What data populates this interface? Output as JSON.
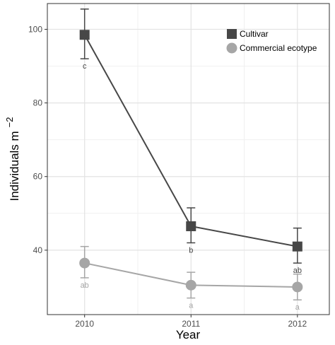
{
  "chart_data": {
    "type": "line",
    "xlabel": "Year",
    "ylabel": "Individuals m",
    "ylabel_superscript": "−2",
    "x": [
      "2010",
      "2011",
      "2012"
    ],
    "xlim": [
      2009.65,
      2012.3
    ],
    "ylim": [
      22.5,
      107
    ],
    "yticks": [
      "40",
      "60",
      "80",
      "100"
    ],
    "grid": true,
    "legend_position": "top-right",
    "series": [
      {
        "name": "Cultivar",
        "marker": "square",
        "color": "#474747",
        "values": [
          98.5,
          46.5,
          41.0
        ],
        "error_low": [
          92.0,
          42.0,
          36.5
        ],
        "error_high": [
          105.5,
          51.5,
          46.0
        ],
        "letters": [
          "c",
          "b",
          "ab"
        ]
      },
      {
        "name": "Commercial ecotype",
        "marker": "circle",
        "color": "#a6a6a6",
        "values": [
          36.5,
          30.5,
          30.0
        ],
        "error_low": [
          32.5,
          27.0,
          26.5
        ],
        "error_high": [
          41.0,
          34.0,
          33.5
        ],
        "letters": [
          "ab",
          "a",
          "a"
        ]
      }
    ]
  }
}
